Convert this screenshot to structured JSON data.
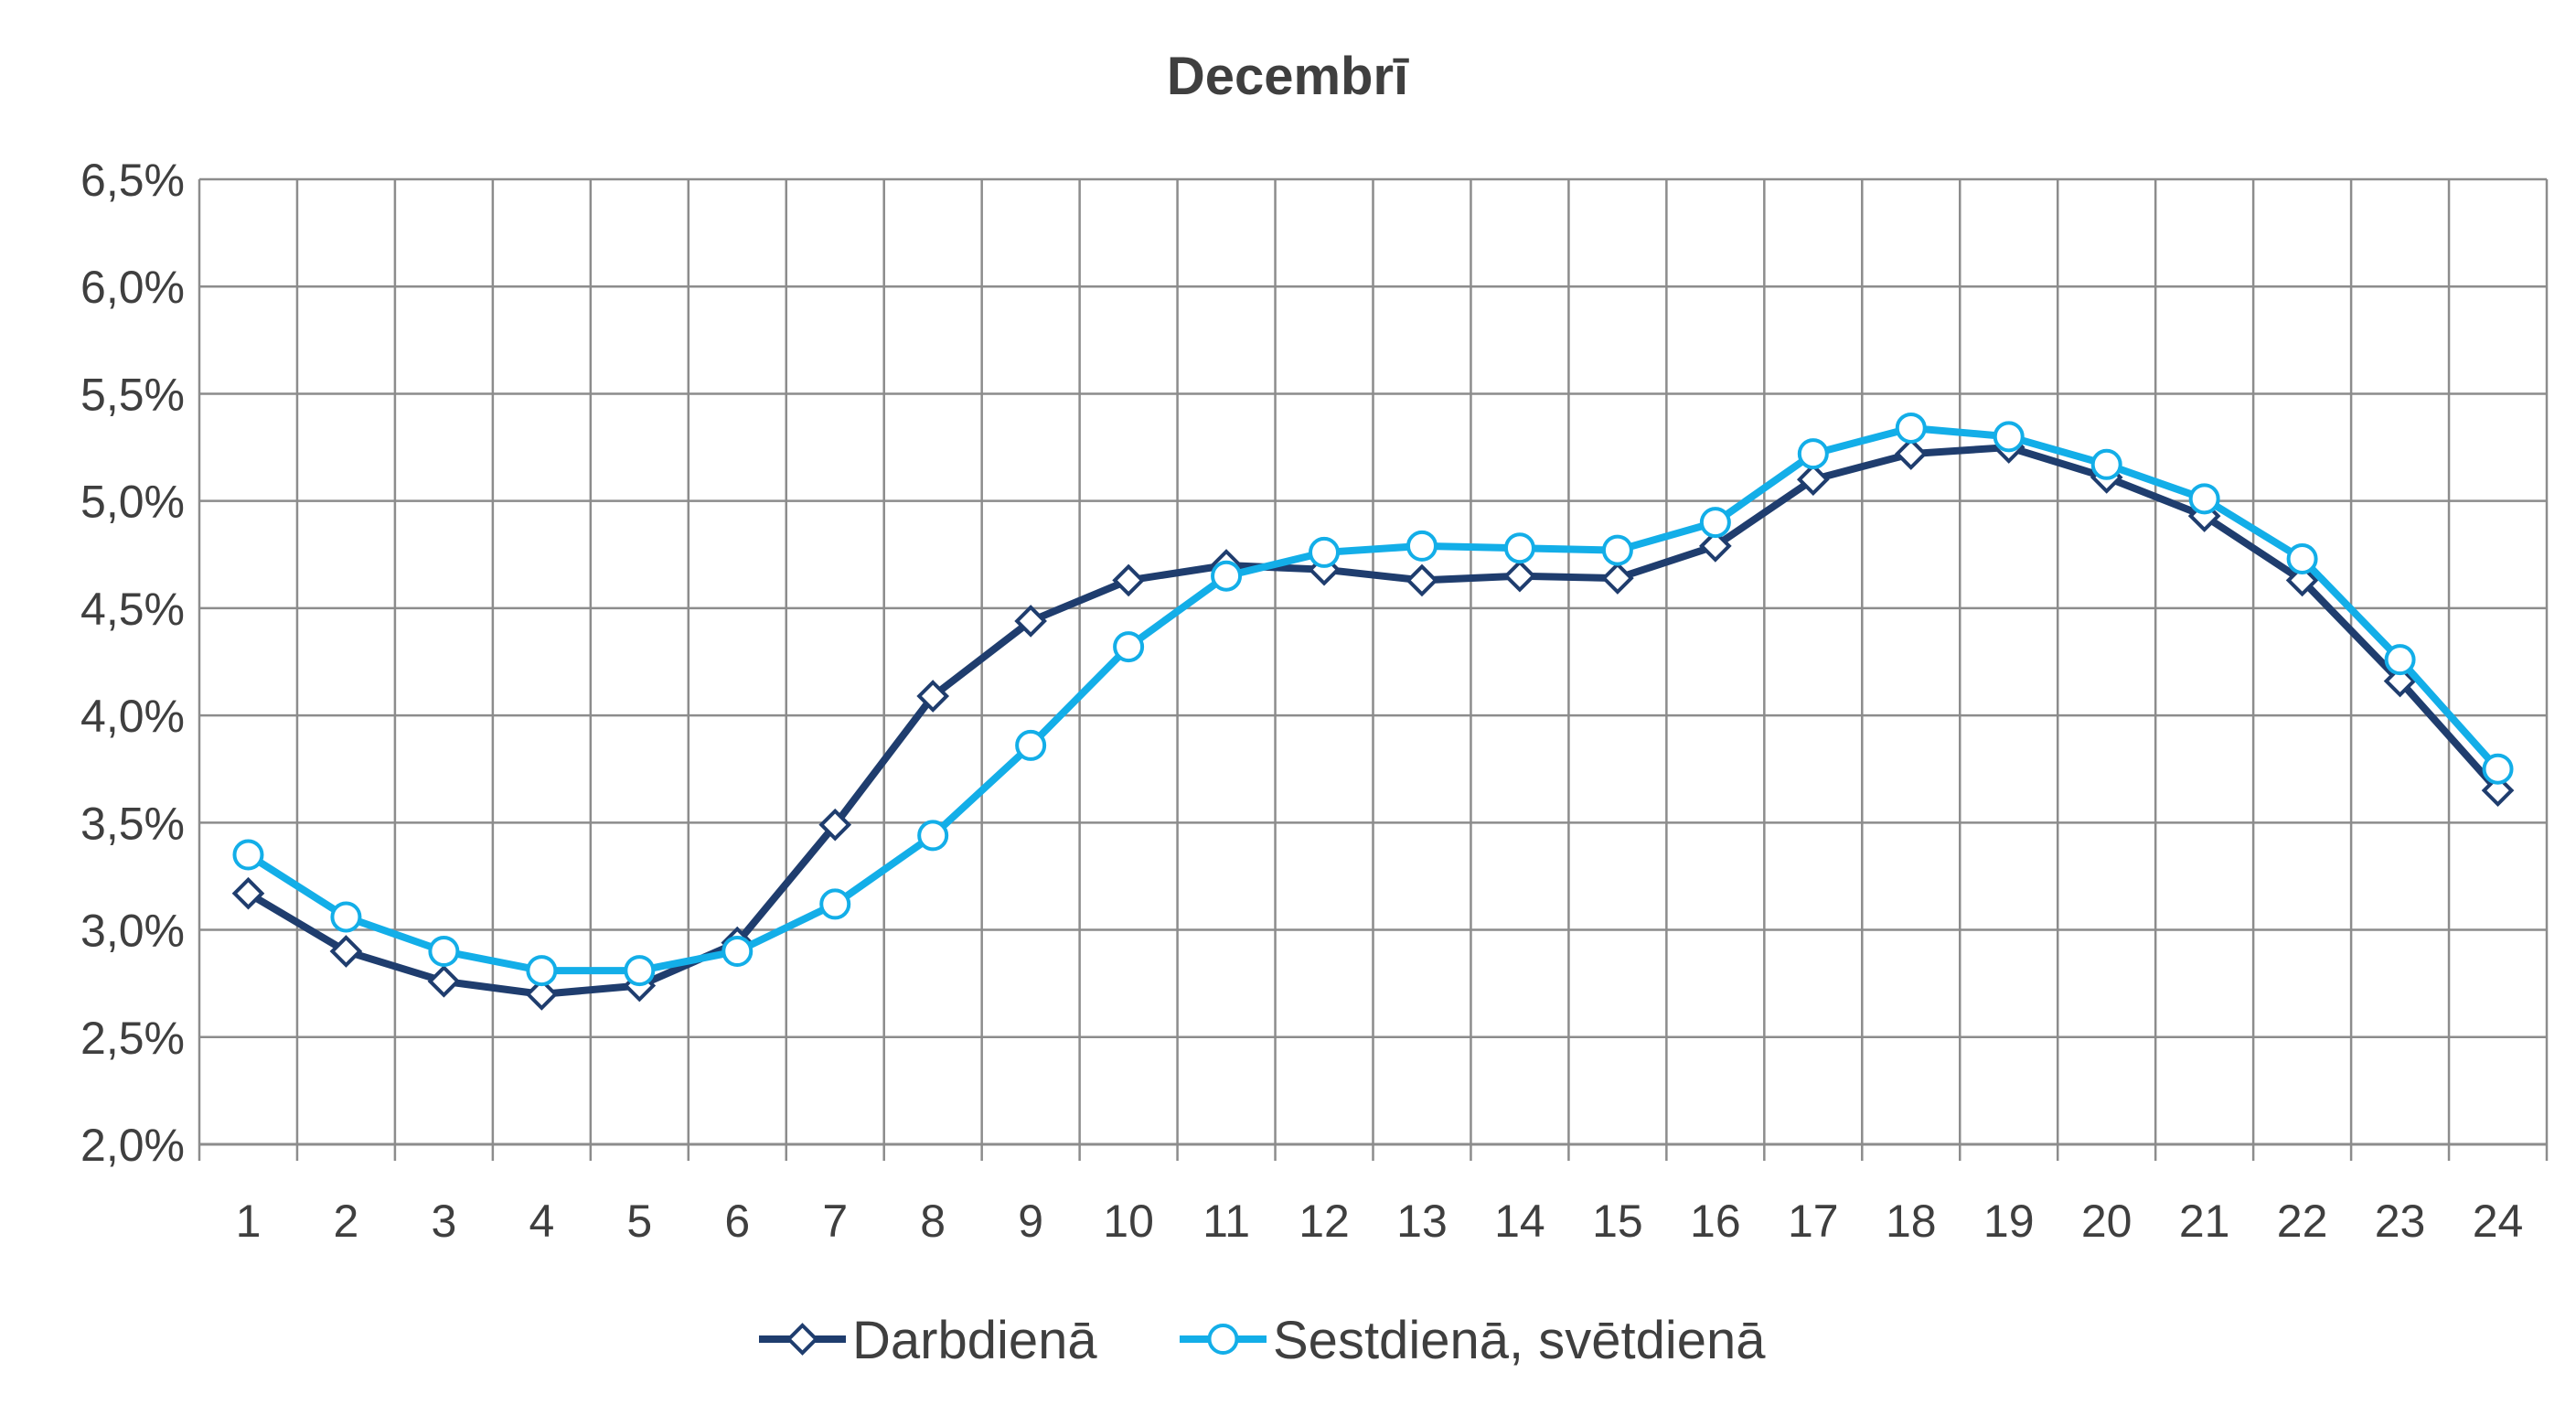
{
  "chart_data": {
    "type": "line",
    "title": "Decembrī",
    "xlabel": "",
    "ylabel": "",
    "categories": [
      "1",
      "2",
      "3",
      "4",
      "5",
      "6",
      "7",
      "8",
      "9",
      "10",
      "11",
      "12",
      "13",
      "14",
      "15",
      "16",
      "17",
      "18",
      "19",
      "20",
      "21",
      "22",
      "23",
      "24"
    ],
    "y_tick_labels": [
      "2,0%",
      "2,5%",
      "3,0%",
      "3,5%",
      "4,0%",
      "4,5%",
      "5,0%",
      "5,5%",
      "6,0%",
      "6,5%"
    ],
    "y_ticks": [
      2.0,
      2.5,
      3.0,
      3.5,
      4.0,
      4.5,
      5.0,
      5.5,
      6.0,
      6.5
    ],
    "ylim": [
      2.0,
      6.5
    ],
    "grid": true,
    "legend_position": "bottom",
    "series": [
      {
        "name": "Darbdienā",
        "color": "#1f3d6e",
        "marker": "diamond",
        "values": [
          3.17,
          2.9,
          2.76,
          2.7,
          2.74,
          2.94,
          3.49,
          4.09,
          4.44,
          4.63,
          4.7,
          4.68,
          4.63,
          4.65,
          4.64,
          4.79,
          5.1,
          5.22,
          5.25,
          5.11,
          4.93,
          4.63,
          4.16,
          3.65
        ]
      },
      {
        "name": "Sestdienā, svētdienā",
        "color": "#13aee8",
        "marker": "circle",
        "values": [
          3.35,
          3.06,
          2.9,
          2.81,
          2.81,
          2.9,
          3.12,
          3.44,
          3.86,
          4.32,
          4.65,
          4.76,
          4.79,
          4.78,
          4.77,
          4.9,
          5.22,
          5.34,
          5.3,
          5.17,
          5.01,
          4.73,
          4.26,
          3.75
        ]
      }
    ]
  }
}
